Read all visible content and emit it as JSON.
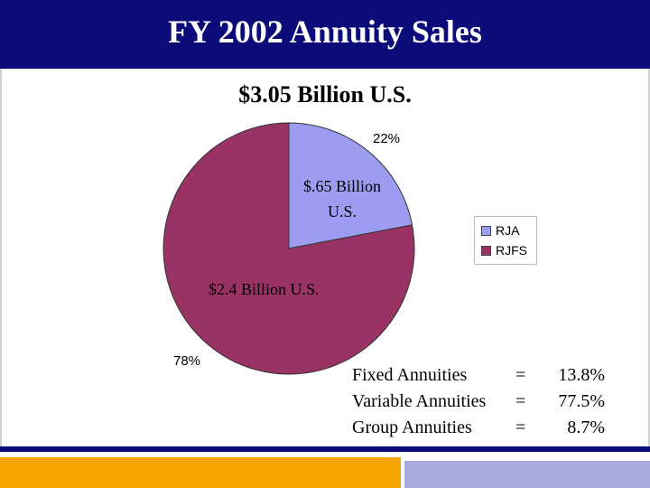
{
  "header": {
    "title": "FY 2002 Annuity Sales"
  },
  "subtitle": "$3.05 Billion U.S.",
  "colors": {
    "header": "#0b0b7a",
    "RJA": "#9c9cf0",
    "RJFS": "#993366",
    "accent_orange": "#f7a400",
    "accent_lavender": "#a9a9de"
  },
  "chart_data": {
    "type": "pie",
    "title": "$3.05 Billion U.S.",
    "slices": [
      {
        "name": "RJA",
        "value": 22,
        "percent_label": "22%",
        "amount_label": [
          "$.65 Billion",
          "U.S."
        ],
        "color": "#9c9cf0"
      },
      {
        "name": "RJFS",
        "value": 78,
        "percent_label": "78%",
        "amount_label": [
          "$2.4 Billion U.S."
        ],
        "color": "#993366"
      }
    ],
    "legend": {
      "position": "right",
      "entries": [
        "RJA",
        "RJFS"
      ]
    }
  },
  "breakdown": [
    {
      "name": "Fixed Annuities",
      "eq": "=",
      "value": "13.8%"
    },
    {
      "name": "Variable Annuities",
      "eq": "=",
      "value": "77.5%"
    },
    {
      "name": "Group Annuities",
      "eq": "=",
      "value": "8.7%"
    }
  ]
}
